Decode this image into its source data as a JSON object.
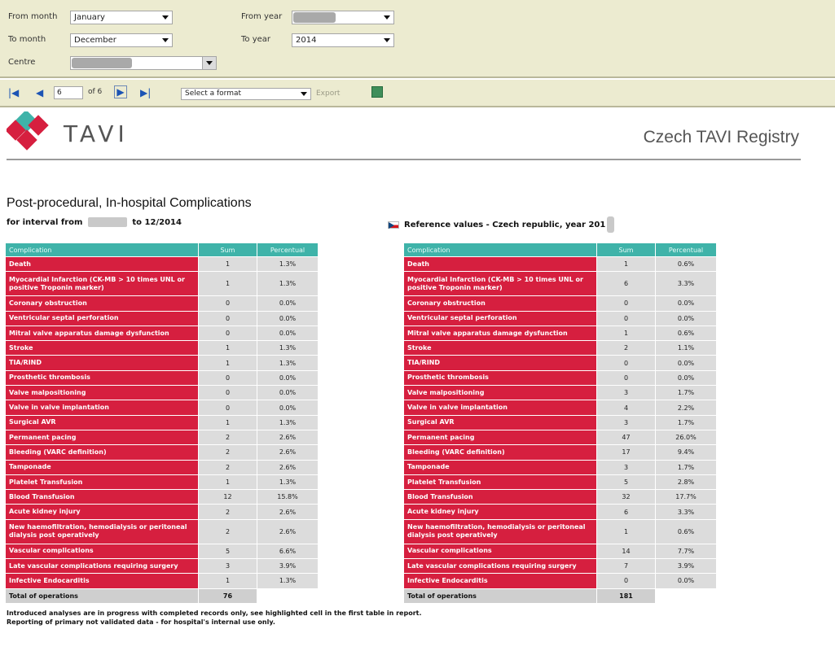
{
  "filters": {
    "from_month_label": "From month",
    "from_month_value": "January",
    "to_month_label": "To month",
    "to_month_value": "December",
    "from_year_label": "From year",
    "from_year_value": "",
    "to_year_label": "To year",
    "to_year_value": "2014",
    "centre_label": "Centre",
    "centre_value": ""
  },
  "toolbar": {
    "first_icon": "first-page-icon",
    "prev_icon": "previous-page-icon",
    "page_value": "6",
    "of_pages": "of 6",
    "next_icon": "next-page-icon",
    "last_icon": "last-page-icon",
    "format_placeholder": "Select a format",
    "export_label": "Export",
    "refresh_icon": "refresh-icon"
  },
  "header": {
    "brand": "TAVI",
    "registry": "Czech TAVI Registry"
  },
  "report": {
    "title": "Post-procedural, In-hospital Complications",
    "interval_prefix": "for interval from",
    "interval_suffix": "to 12/2014",
    "reference_title": "Reference values - Czech republic, year 201"
  },
  "left_table": {
    "headers": [
      "Complication",
      "Sum",
      "Percentual"
    ],
    "rows": [
      [
        "Death",
        "1",
        "1.3%"
      ],
      [
        "Myocardial Infarction (CK-MB > 10 times UNL or positive Troponin marker)",
        "1",
        "1.3%"
      ],
      [
        "Coronary obstruction",
        "0",
        "0.0%"
      ],
      [
        "Ventricular septal perforation",
        "0",
        "0.0%"
      ],
      [
        "Mitral valve apparatus damage dysfunction",
        "0",
        "0.0%"
      ],
      [
        "Stroke",
        "1",
        "1.3%"
      ],
      [
        "TIA/RIND",
        "1",
        "1.3%"
      ],
      [
        "Prosthetic thrombosis",
        "0",
        "0.0%"
      ],
      [
        "Valve malpositioning",
        "0",
        "0.0%"
      ],
      [
        "Valve in valve implantation",
        "0",
        "0.0%"
      ],
      [
        "Surgical AVR",
        "1",
        "1.3%"
      ],
      [
        "Permanent pacing",
        "2",
        "2.6%"
      ],
      [
        "Bleeding (VARC definition)",
        "2",
        "2.6%"
      ],
      [
        "Tamponade",
        "2",
        "2.6%"
      ],
      [
        "Platelet Transfusion",
        "1",
        "1.3%"
      ],
      [
        "Blood Transfusion",
        "12",
        "15.8%"
      ],
      [
        "Acute kidney injury",
        "2",
        "2.6%"
      ],
      [
        "New haemofiltration, hemodialysis or peritoneal dialysis post operatively",
        "2",
        "2.6%"
      ],
      [
        "Vascular complications",
        "5",
        "6.6%"
      ],
      [
        "Late vascular complications requiring surgery",
        "3",
        "3.9%"
      ],
      [
        "Infective Endocarditis",
        "1",
        "1.3%"
      ]
    ],
    "total_label": "Total of operations",
    "total_value": "76"
  },
  "right_table": {
    "headers": [
      "Complication",
      "Sum",
      "Percentual"
    ],
    "rows": [
      [
        "Death",
        "1",
        "0.6%"
      ],
      [
        "Myocardial Infarction (CK-MB > 10 times UNL or positive Troponin marker)",
        "6",
        "3.3%"
      ],
      [
        "Coronary obstruction",
        "0",
        "0.0%"
      ],
      [
        "Ventricular septal perforation",
        "0",
        "0.0%"
      ],
      [
        "Mitral valve apparatus damage dysfunction",
        "1",
        "0.6%"
      ],
      [
        "Stroke",
        "2",
        "1.1%"
      ],
      [
        "TIA/RIND",
        "0",
        "0.0%"
      ],
      [
        "Prosthetic thrombosis",
        "0",
        "0.0%"
      ],
      [
        "Valve malpositioning",
        "3",
        "1.7%"
      ],
      [
        "Valve in valve implantation",
        "4",
        "2.2%"
      ],
      [
        "Surgical AVR",
        "3",
        "1.7%"
      ],
      [
        "Permanent pacing",
        "47",
        "26.0%"
      ],
      [
        "Bleeding (VARC definition)",
        "17",
        "9.4%"
      ],
      [
        "Tamponade",
        "3",
        "1.7%"
      ],
      [
        "Platelet Transfusion",
        "5",
        "2.8%"
      ],
      [
        "Blood Transfusion",
        "32",
        "17.7%"
      ],
      [
        "Acute kidney injury",
        "6",
        "3.3%"
      ],
      [
        "New haemofiltration, hemodialysis or peritoneal dialysis post operatively",
        "1",
        "0.6%"
      ],
      [
        "Vascular complications",
        "14",
        "7.7%"
      ],
      [
        "Late vascular complications requiring surgery",
        "7",
        "3.9%"
      ],
      [
        "Infective Endocarditis",
        "0",
        "0.0%"
      ]
    ],
    "total_label": "Total of operations",
    "total_value": "181"
  },
  "footnote": {
    "line1": "Introduced analyses are in progress with completed records only, see highlighted cell in the first table in report.",
    "line2": "Reporting of primary not validated data - for hospital's internal use only."
  },
  "colors": {
    "panel_bg": "#ecebd0",
    "header_teal": "#3fb3a9",
    "complication_red": "#d61f3f",
    "value_gray": "#dcdcdc",
    "logo_red": "#d61f3f",
    "logo_teal": "#3fb3a9"
  }
}
